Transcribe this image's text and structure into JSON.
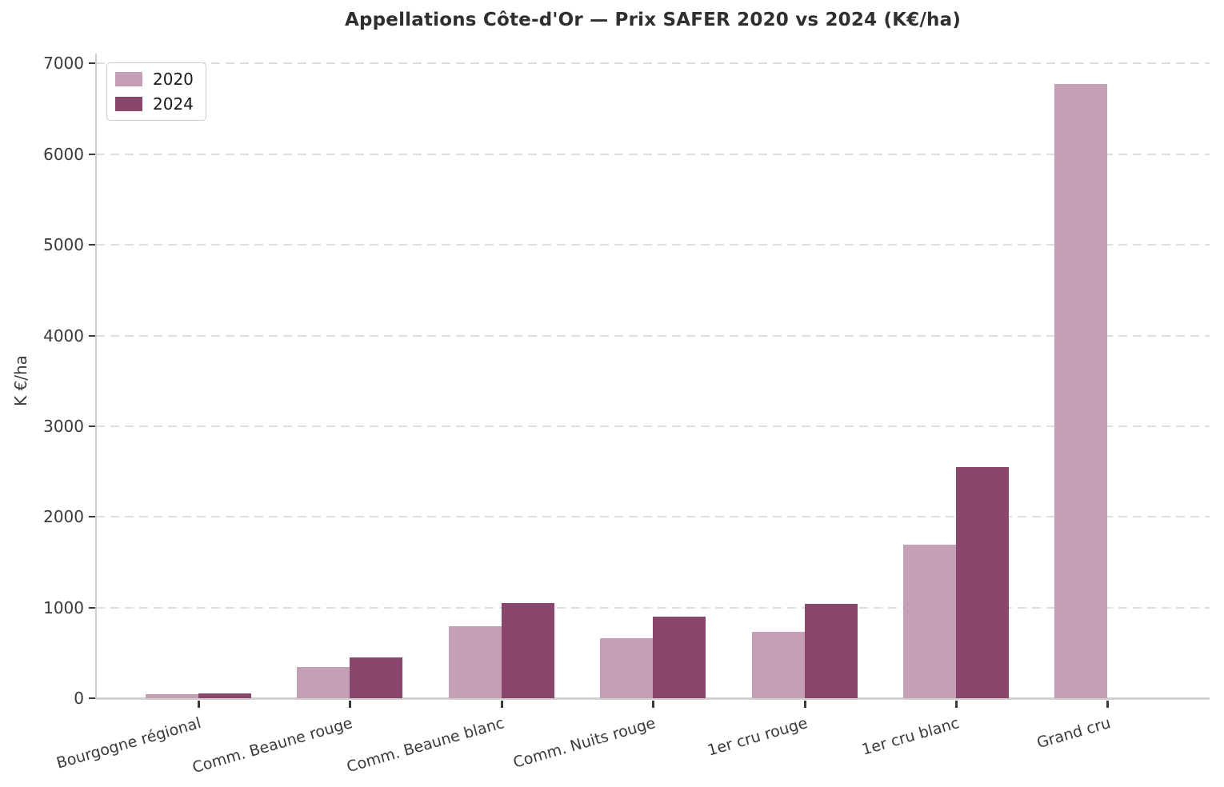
{
  "chart_data": {
    "type": "bar",
    "title": "Appellations Côte-d'Or — Prix SAFER 2020 vs 2024 (K€/ha)",
    "xlabel": "",
    "ylabel": "K €/ha",
    "ylim": [
      0,
      7000
    ],
    "yticks": [
      0,
      1000,
      2000,
      3000,
      4000,
      5000,
      6000,
      7000
    ],
    "grid": "horizontal-dashed",
    "legend_position": "upper-left",
    "categories": [
      "Bourgogne régional",
      "Comm. Beaune rouge",
      "Comm. Beaune blanc",
      "Comm. Nuits rouge",
      "1er cru rouge",
      "1er cru blanc",
      "Grand cru"
    ],
    "series": [
      {
        "name": "2020",
        "color": "#c49fb5",
        "values": [
          45,
          345,
          790,
          660,
          730,
          1690,
          6770
        ]
      },
      {
        "name": "2024",
        "color": "#8a476e",
        "values": [
          55,
          450,
          1050,
          900,
          1040,
          2550,
          null
        ]
      }
    ],
    "colors": {
      "series_2020": "#c49fb5",
      "series_2024": "#8a476e",
      "gridline": "#dedede",
      "spine": "#cfcfcf",
      "tick_text": "#3a3a3a",
      "title_text": "#2f2f2f",
      "background": "#ffffff"
    }
  }
}
